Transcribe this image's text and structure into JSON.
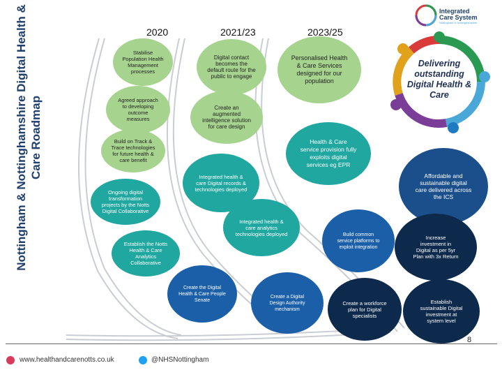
{
  "title": "Nottingham & Nottinghamshire Digital Health & Care Roadmap",
  "logo": {
    "line1": "Integrated",
    "line2": "Care System",
    "line3": "Nottingham & Nottinghamshire"
  },
  "years": [
    "2020",
    "2021/23",
    "2023/25"
  ],
  "hub": "Delivering outstanding Digital Health & Care",
  "nodes": {
    "n1": "Stabilise Population Health Management processes",
    "n2": "Agreed approach to developing outcome measures",
    "n3": "Build on Track & Trace technologies for future health & care benefit",
    "n4": "Ongoing digital transformation projects by the Notts Digital Collaborative",
    "n5": "Establish the Notts Health & Care Analytics Collaborative",
    "n6": "Digital contact becomes the default route for the public to engage",
    "n7": "Create an augmented intelligence solution for care design",
    "n8": "Integrated health & care Digital records & technologies deployed",
    "n9": "Integrated health & care analytics technologies deployed",
    "n10": "Create the Digital Health & Care People Senate",
    "n11": "Personalised Health & Care Services designed for our population",
    "n12": "Health & Care service provision fully exploits digital services eg EPR",
    "n13": "Create a Digital Design Authority mechanism",
    "n14": "Build common service platforms to exploit integration",
    "n15": "Create a workforce plan for Digital specialists",
    "n16": "Affordable and sustainable digital care delivered across the ICS",
    "n17": "Increase investment in Digital as per 5yr Plan with 3x Return",
    "n18": "Establish sustainable Digital investment at system level"
  },
  "footer": {
    "website": "www.healthandcarenotts.co.uk",
    "twitter": "@NHSNottingham",
    "page": "8"
  },
  "colors": {
    "green": "#a6d48e",
    "teal": "#1fa7a0",
    "blue": "#1a5fa8",
    "navy": "#1a4f8c",
    "dark": "#0d2a4d",
    "title": "#1f3f6e"
  }
}
